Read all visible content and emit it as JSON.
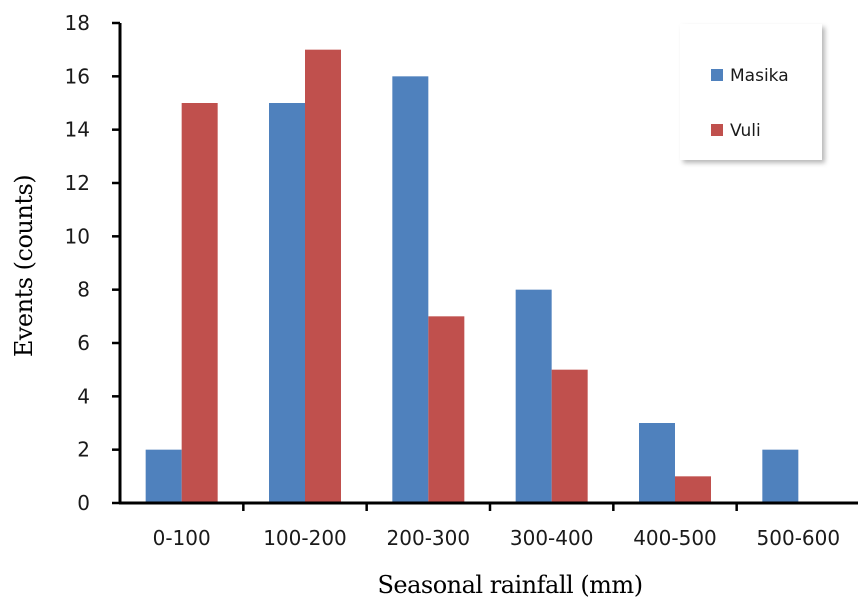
{
  "chart_data": {
    "type": "bar",
    "title": "",
    "xlabel": "Seasonal rainfall (mm)",
    "ylabel": "Events (counts)",
    "categories": [
      "0-100",
      "100-200",
      "200-300",
      "300-400",
      "400-500",
      "500-600"
    ],
    "series": [
      {
        "name": "Masika",
        "color": "#4f81bd",
        "values": [
          2,
          15,
          16,
          8,
          3,
          2
        ]
      },
      {
        "name": "Vuli",
        "color": "#c0504d",
        "values": [
          15,
          17,
          7,
          5,
          1,
          0
        ]
      }
    ],
    "ylim": [
      0,
      18
    ],
    "yticks": [
      0,
      2,
      4,
      6,
      8,
      10,
      12,
      14,
      16,
      18
    ],
    "grid": false,
    "legend_position": "top-right"
  }
}
